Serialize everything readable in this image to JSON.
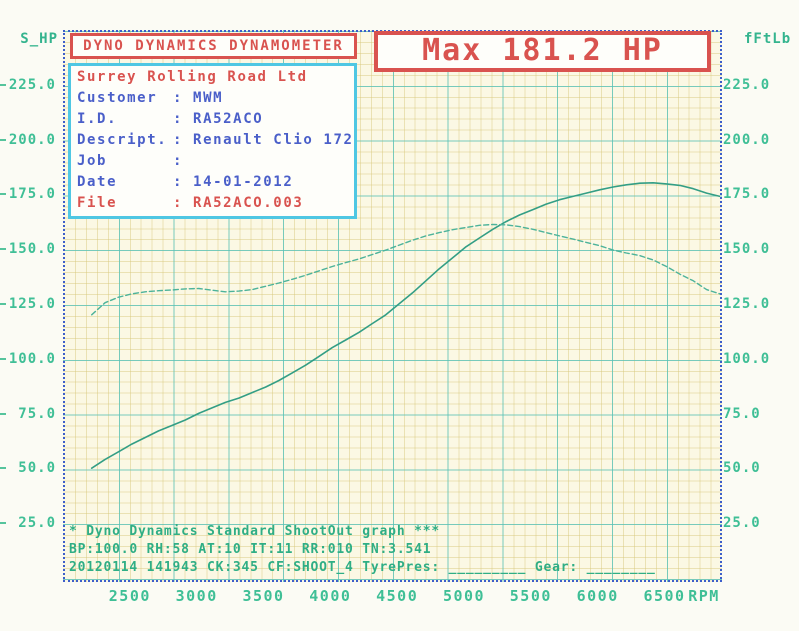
{
  "header": {
    "title": "DYNO DYNAMICS DYNAMOMETER",
    "max_label": "Max 181.2 HP"
  },
  "info_box": {
    "company": "Surrey Rolling Road Ltd",
    "rows": [
      {
        "label": "Customer",
        "value": "MWM",
        "color": "blue"
      },
      {
        "label": "I.D.",
        "value": "RA52ACO",
        "color": "blue"
      },
      {
        "label": "Descript.",
        "value": "Renault Clio 172",
        "color": "blue"
      },
      {
        "label": "Job",
        "value": "",
        "color": "blue"
      },
      {
        "label": "Date",
        "value": "14-01-2012",
        "color": "blue"
      },
      {
        "label": "File",
        "value": "RA52ACO.003",
        "color": "red"
      }
    ]
  },
  "footer": {
    "line1": "* Dyno Dynamics Standard ShootOut graph ***",
    "line2": "BP:100.0 RH:58 AT:10 IT:11  RR:010 TN:3.541",
    "line3": "20120114 141943 CK:345 CF:SHOOT_4   TyrePres: _________   Gear: ________"
  },
  "colors": {
    "red": "#d9534f",
    "blue_text": "#4a5fc9",
    "cyan_box_border": "#4fc7e3",
    "green_text": "#2fae85",
    "axis_green": "#3fbf96",
    "plot_border_blue": "#3c5ecb",
    "plot_background": "#fbf8e4",
    "grid_major_cyan": "#50c3be",
    "grid_minor_yellow": "#d6c678",
    "power_curve": "#339e85",
    "torque_curve": "#4db39a"
  },
  "chart_data": {
    "type": "line",
    "title": "Dyno Dynamics Standard ShootOut graph",
    "x_axis": {
      "unit_label": "RPM",
      "range": [
        2000,
        6900
      ],
      "ticks": [
        2500,
        3000,
        3500,
        4000,
        4500,
        5000,
        5500,
        6000,
        6500
      ]
    },
    "y_axis_left": {
      "label": "S_HP",
      "range": [
        0,
        250
      ],
      "tick_values": [
        225,
        200,
        175,
        150,
        125,
        100,
        75,
        50,
        25
      ],
      "tick_labels": [
        "225.0",
        "200.0",
        "175.0",
        "150.0",
        "125.0",
        "100.0",
        "75.0",
        "50.0",
        "25.0"
      ]
    },
    "y_axis_right": {
      "label": "fFtLb",
      "range": [
        0,
        250
      ],
      "tick_values": [
        225,
        200,
        175,
        150,
        125,
        100,
        75,
        50,
        25
      ],
      "tick_labels": [
        "225.0",
        "200.0",
        "175.0",
        "150.0",
        "125.0",
        "100.0",
        "75.0",
        "50.0",
        "25.0"
      ]
    },
    "annotations": {
      "max_power_hp": 181.2
    },
    "x": [
      2200,
      2300,
      2400,
      2500,
      2600,
      2700,
      2800,
      2900,
      3000,
      3100,
      3200,
      3300,
      3400,
      3500,
      3600,
      3700,
      3800,
      3900,
      4000,
      4100,
      4200,
      4300,
      4400,
      4500,
      4600,
      4700,
      4800,
      4900,
      5000,
      5100,
      5200,
      5300,
      5400,
      5500,
      5600,
      5700,
      5800,
      5900,
      6000,
      6100,
      6200,
      6300,
      6400,
      6500,
      6600,
      6700,
      6800,
      6900
    ],
    "series": [
      {
        "name": "power_hp",
        "style": "solid",
        "values": [
          51,
          55,
          58.5,
          62,
          65,
          68,
          70.5,
          73,
          76,
          78.5,
          81,
          83,
          85.5,
          88,
          91,
          94.5,
          98,
          102,
          106,
          109.5,
          113,
          117,
          121,
          126,
          131,
          136.5,
          142,
          147,
          152,
          156,
          160,
          163.5,
          166.5,
          169,
          171.5,
          173.5,
          175,
          176.5,
          178,
          179.3,
          180.3,
          181,
          181.2,
          180.7,
          180,
          178.5,
          176.5,
          175
        ]
      },
      {
        "name": "torque_ftlb",
        "style": "dashed",
        "values": [
          121,
          126.5,
          129,
          130.5,
          131.5,
          132,
          132.3,
          132.8,
          133,
          132.2,
          131.5,
          131.8,
          132.5,
          134,
          135.5,
          137.2,
          139,
          141,
          143,
          144.8,
          146.5,
          148.5,
          150.5,
          152.8,
          155,
          157,
          158.5,
          159.8,
          160.8,
          161.8,
          162.2,
          162,
          161.2,
          160,
          158.5,
          157,
          155.5,
          154,
          152.5,
          150.5,
          149.2,
          148,
          146,
          143,
          139.5,
          136.5,
          132.5,
          130.5
        ]
      }
    ]
  }
}
